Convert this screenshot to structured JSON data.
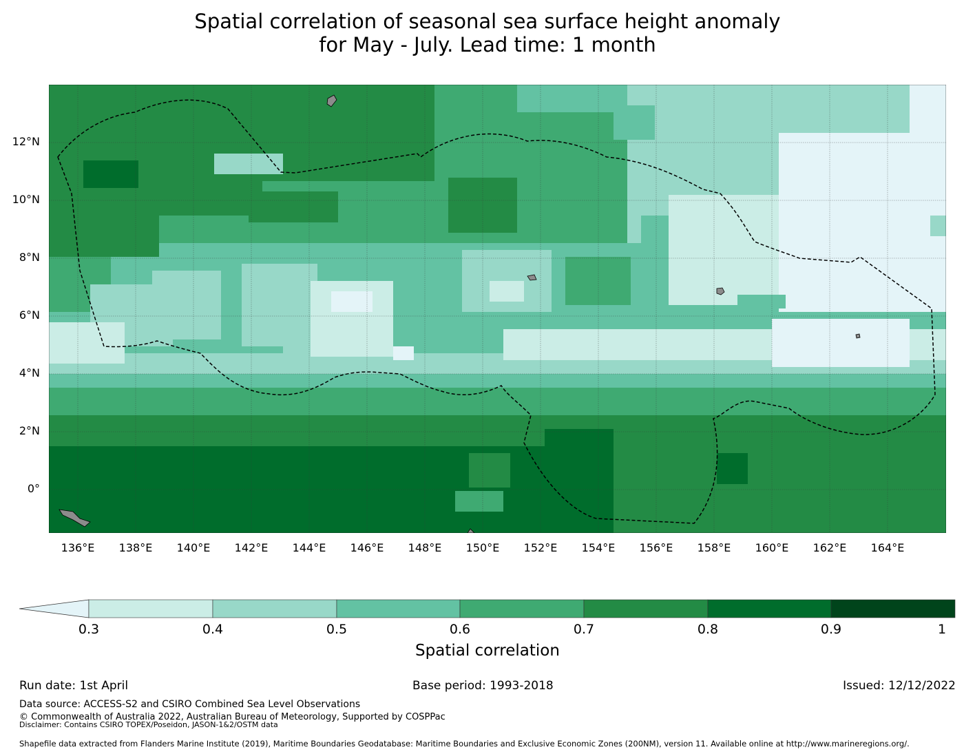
{
  "title": {
    "line1": "Spatial correlation of seasonal sea surface height anomaly",
    "line2": "for May - July. Lead time: 1 month"
  },
  "map": {
    "lat_labels": [
      "12°N",
      "10°N",
      "8°N",
      "6°N",
      "4°N",
      "2°N",
      "0°"
    ],
    "lon_labels": [
      "136°E",
      "138°E",
      "140°E",
      "142°E",
      "144°E",
      "146°E",
      "148°E",
      "150°E",
      "152°E",
      "154°E",
      "156°E",
      "158°E",
      "160°E",
      "162°E",
      "164°E"
    ],
    "lon_range": [
      134.9,
      165.9
    ],
    "lat_range": [
      -1.5,
      14.0
    ]
  },
  "colorbar": {
    "ticks": [
      "0.3",
      "0.4",
      "0.5",
      "0.6",
      "0.7",
      "0.8",
      "0.9",
      "1"
    ],
    "label": "Spatial correlation",
    "colors": [
      "#e4f4f8",
      "#cbede6",
      "#98d8c8",
      "#63c2a3",
      "#3faa72",
      "#238b45",
      "#006d2c",
      "#00441b"
    ]
  },
  "footer": {
    "run_date": "Run date: 1st April",
    "base_period": "Base period: 1993-2018",
    "issued": "Issued: 12/12/2022",
    "data_source": "Data source: ACCESS-S2 and CSIRO Combined Sea Level Observations",
    "copyright": "© Commonwealth of Australia 2022, Australian Bureau of Meteorology, Supported by COSPPac",
    "disclaimer": "Disclaimer: Contains CSIRO TOPEX/Poseidon, JASON-1&2/OSTM data",
    "shapefile": "Shapefile data extracted from Flanders Marine Institute (2019), Maritime Boundaries Geodatabase: Maritime Boundaries and Exclusive Economic Zones (200NM), version 11. Available online at http://www.marineregions.org/."
  }
}
